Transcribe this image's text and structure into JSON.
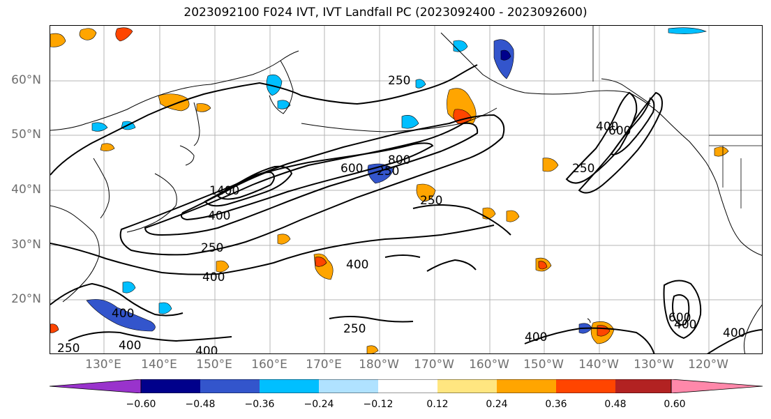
{
  "title": "2023092100 F024 IVT, IVT Landfall PC (2023092400 - 2023092600)",
  "lat_labels": [
    "60°N",
    "50°N",
    "40°N",
    "30°N",
    "20°N"
  ],
  "lon_labels": [
    "130°E",
    "140°E",
    "150°E",
    "160°E",
    "170°E",
    "180°W",
    "170°W",
    "160°W",
    "150°W",
    "140°W",
    "130°W",
    "120°W"
  ],
  "colorbar": {
    "colors": [
      "#9933cc",
      "#00008b",
      "#3355cc",
      "#00bfff",
      "#b0e2ff",
      "#ffffff",
      "#ffe680",
      "#ffa500",
      "#ff4500",
      "#b22222",
      "#ff88aa"
    ],
    "ticks": [
      "−0.60",
      "−0.48",
      "−0.36",
      "−0.24",
      "−0.12",
      "0.12",
      "0.24",
      "0.36",
      "0.48",
      "0.60"
    ]
  },
  "contour_labels": [
    "250",
    "600",
    "800",
    "250",
    "1400",
    "400",
    "250",
    "400",
    "400",
    "400",
    "250",
    "600",
    "250",
    "400",
    "250",
    "400",
    "250",
    "400",
    "600",
    "400",
    "400",
    "400"
  ]
}
